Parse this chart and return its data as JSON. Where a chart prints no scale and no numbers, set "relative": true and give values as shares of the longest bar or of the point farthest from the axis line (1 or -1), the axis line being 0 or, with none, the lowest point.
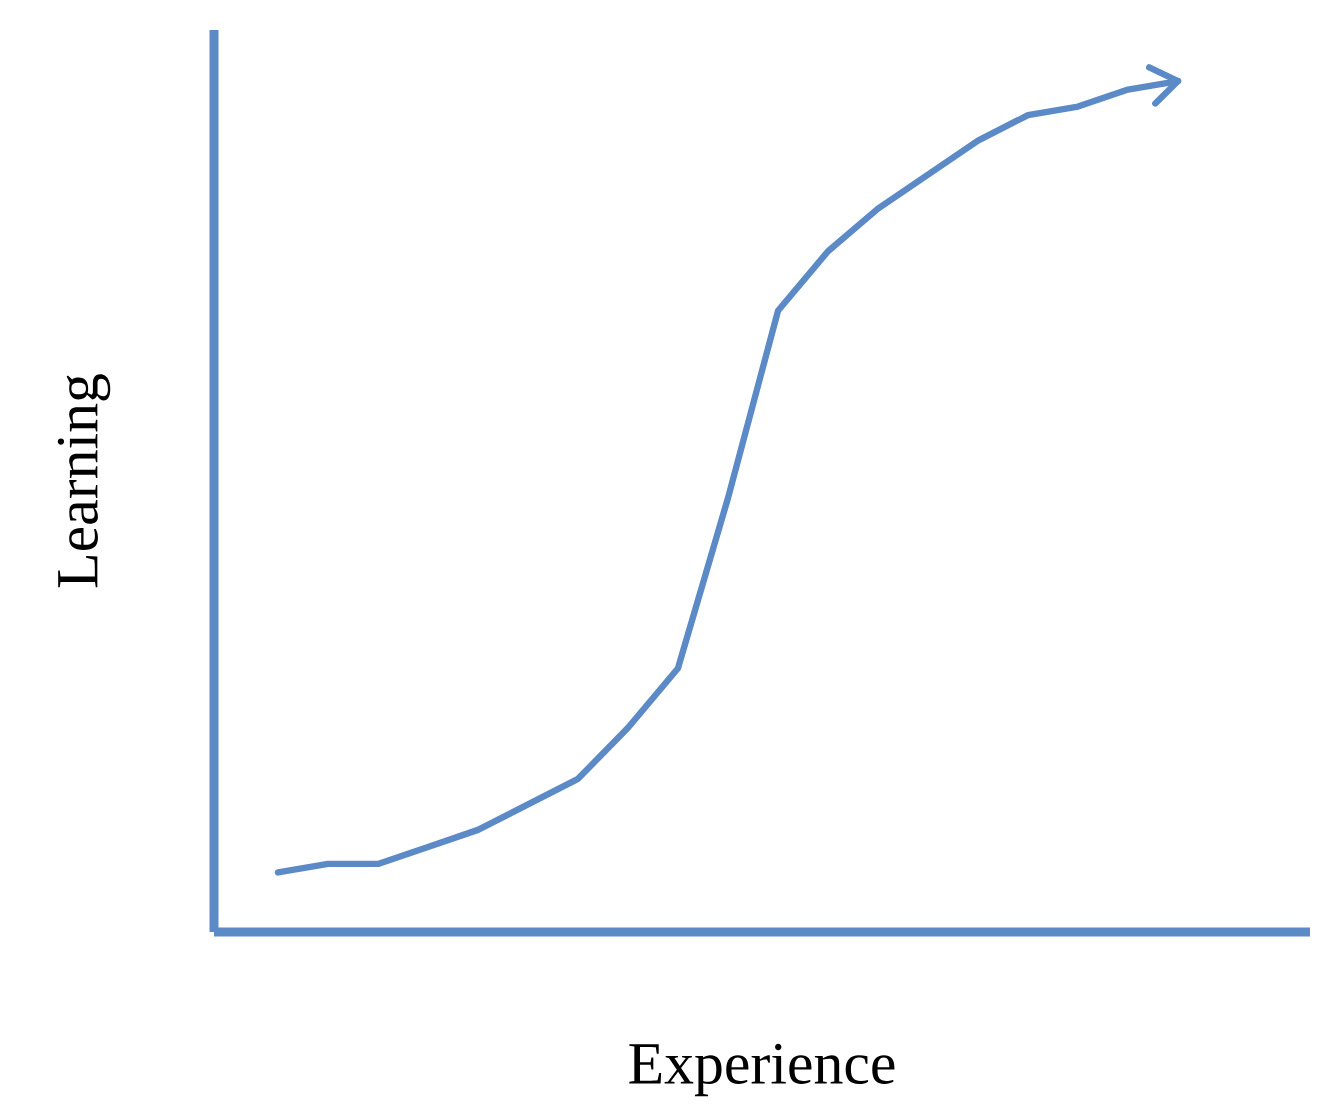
{
  "chart_data": {
    "type": "line",
    "relative": true,
    "xlabel": "Experience",
    "ylabel": "Learning",
    "categories": [
      null,
      null,
      null,
      null,
      null,
      null,
      null,
      null,
      null,
      null,
      null,
      null,
      null,
      null,
      null,
      null,
      null,
      null,
      null
    ],
    "series": [
      {
        "color": "#5b8ac6",
        "values": [
          0.07,
          0.08,
          0.08,
          0.1,
          0.12,
          0.15,
          0.18,
          0.24,
          0.31,
          0.51,
          0.73,
          0.8,
          0.85,
          0.89,
          0.93,
          0.96,
          0.97,
          0.99,
          1
        ]
      }
    ]
  }
}
